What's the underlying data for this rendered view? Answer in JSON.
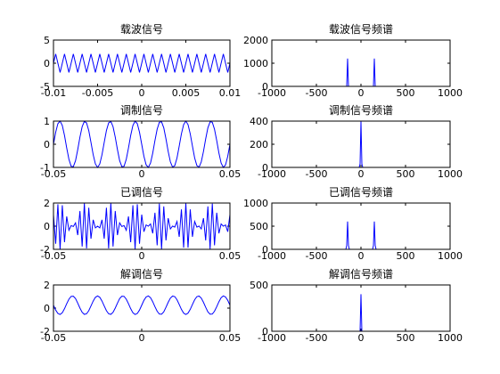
{
  "chart_data": [
    {
      "type": "line",
      "title": "载波信号",
      "color": "#0000ff",
      "x": [
        -0.01,
        -0.00975,
        -0.0095,
        -0.00925,
        -0.009,
        -0.00875,
        -0.0085,
        -0.00825,
        -0.008,
        -0.00775,
        -0.0075,
        -0.00725,
        -0.007,
        -0.00675,
        -0.0065,
        -0.00625,
        -0.006,
        -0.00575,
        -0.0055,
        -0.00525,
        -0.005,
        -0.00475,
        -0.0045,
        -0.00425,
        -0.004,
        -0.00375,
        -0.0035,
        -0.00325,
        -0.003,
        -0.00275,
        -0.0025,
        -0.00225,
        -0.002,
        -0.00175,
        -0.0015,
        -0.00125,
        -0.001,
        -0.00075,
        -0.0005,
        -0.00025,
        0,
        0.00025,
        0.0005,
        0.00075,
        0.001,
        0.00125,
        0.0015,
        0.00175,
        0.002,
        0.00225,
        0.0025,
        0.00275,
        0.003,
        0.00325,
        0.0035,
        0.00375,
        0.004,
        0.00425,
        0.0045,
        0.00475,
        0.005,
        0.00525,
        0.0055,
        0.00575,
        0.006,
        0.00625,
        0.0065,
        0.00675,
        0.007,
        0.00725,
        0.0075,
        0.00775,
        0.008,
        0.00825,
        0.0085,
        0.00875,
        0.009,
        0.00925,
        0.0095,
        0.00975,
        0.01
      ],
      "values": [
        0,
        2,
        0,
        -2,
        0,
        2,
        0,
        -2,
        0,
        2,
        0,
        -2,
        0,
        2,
        0,
        -2,
        0,
        2,
        0,
        -2,
        0,
        2,
        0,
        -2,
        0,
        2,
        0,
        -2,
        0,
        2,
        0,
        -2,
        0,
        2,
        0,
        -2,
        0,
        2,
        0,
        -2,
        0,
        2,
        0,
        -2,
        0,
        2,
        0,
        -2,
        0,
        2,
        0,
        -2,
        0,
        2,
        0,
        -2,
        0,
        2,
        0,
        -2,
        0,
        2,
        0,
        -2,
        0,
        2,
        0,
        -2,
        0,
        2,
        0,
        -2,
        0,
        2,
        0,
        -2,
        0,
        2,
        0,
        -2,
        0
      ],
      "xlim": [
        -0.01,
        0.01
      ],
      "xticks": [
        -0.01,
        -0.005,
        0,
        0.005,
        0.01
      ],
      "ylim": [
        -5,
        5
      ],
      "yticks": [
        -5,
        0,
        5
      ]
    },
    {
      "type": "line",
      "title": "载波信号频谱",
      "color": "#0000ff",
      "x": [
        -600,
        -160,
        -150,
        -140,
        140,
        150,
        160,
        600
      ],
      "values": [
        0,
        0,
        1200,
        0,
        0,
        1200,
        0,
        0
      ],
      "xlim": [
        -1000,
        1000
      ],
      "xticks": [
        -1000,
        -500,
        0,
        500,
        1000
      ],
      "ylim": [
        0,
        2000
      ],
      "yticks": [
        0,
        1000,
        2000
      ]
    },
    {
      "type": "line",
      "title": "调制信号",
      "color": "#0000ff",
      "x": [
        -0.05,
        -0.04875,
        -0.0475,
        -0.04625,
        -0.045,
        -0.04375,
        -0.0425,
        -0.04125,
        -0.04,
        -0.03875,
        -0.0375,
        -0.03625,
        -0.035,
        -0.03375,
        -0.0325,
        -0.03125,
        -0.03,
        -0.02875,
        -0.0275,
        -0.02625,
        -0.025,
        -0.02375,
        -0.0225,
        -0.02125,
        -0.02,
        -0.01875,
        -0.0175,
        -0.01625,
        -0.015,
        -0.01375,
        -0.0125,
        -0.01125,
        -0.01,
        -0.00875,
        -0.0075,
        -0.00625,
        -0.005,
        -0.00375,
        -0.0025,
        -0.00125,
        0,
        0.00125,
        0.0025,
        0.00375,
        0.005,
        0.00625,
        0.0075,
        0.00875,
        0.01,
        0.01125,
        0.0125,
        0.01375,
        0.015,
        0.01625,
        0.0175,
        0.01875,
        0.02,
        0.02125,
        0.0225,
        0.02375,
        0.025,
        0.02625,
        0.0275,
        0.02875,
        0.03,
        0.03125,
        0.0325,
        0.03375,
        0.035,
        0.03625,
        0.0375,
        0.03875,
        0.04,
        0.04125,
        0.0425,
        0.04375,
        0.045,
        0.04625,
        0.0475,
        0.04875,
        0.05
      ],
      "values": [
        0,
        0.52,
        0.89,
        1,
        0.81,
        0.38,
        -0.16,
        -0.65,
        -0.95,
        -0.97,
        -0.71,
        -0.23,
        0.31,
        0.76,
        0.99,
        0.92,
        0.59,
        0.08,
        -0.45,
        -0.85,
        -1,
        -0.85,
        -0.45,
        0.08,
        0.59,
        0.92,
        0.99,
        0.76,
        0.31,
        -0.23,
        -0.71,
        -0.97,
        -0.95,
        -0.65,
        -0.16,
        0.38,
        0.81,
        1,
        0.89,
        0.52,
        0,
        -0.52,
        -0.89,
        -1,
        -0.81,
        -0.38,
        0.16,
        0.65,
        0.95,
        0.97,
        0.71,
        0.23,
        -0.31,
        -0.76,
        -0.99,
        -0.92,
        -0.59,
        -0.08,
        0.45,
        0.85,
        1,
        0.85,
        0.45,
        -0.08,
        -0.59,
        -0.92,
        -0.99,
        -0.76,
        -0.31,
        0.23,
        0.71,
        0.97,
        0.95,
        0.65,
        0.16,
        -0.38,
        -0.81,
        -1,
        -0.89,
        -0.52,
        0
      ],
      "xlim": [
        -0.05,
        0.05
      ],
      "xticks": [
        -0.05,
        0,
        0.05
      ],
      "ylim": [
        -1,
        1
      ],
      "yticks": [
        -1,
        0,
        1
      ]
    },
    {
      "type": "line",
      "title": "调制信号频谱",
      "color": "#0000ff",
      "x": [
        -600,
        -20,
        -10,
        0,
        10,
        20,
        600
      ],
      "values": [
        0,
        0,
        30,
        400,
        30,
        0,
        0
      ],
      "xlim": [
        -1000,
        1000
      ],
      "xticks": [
        -1000,
        -500,
        0,
        500,
        1000
      ],
      "ylim": [
        0,
        400
      ],
      "yticks": [
        0,
        200,
        400
      ]
    },
    {
      "type": "line",
      "title": "已调信号",
      "color": "#0000ff",
      "x": [
        -0.05,
        -0.04875,
        -0.0475,
        -0.04625,
        -0.045,
        -0.04375,
        -0.0425,
        -0.04125,
        -0.04,
        -0.03875,
        -0.0375,
        -0.03625,
        -0.035,
        -0.03375,
        -0.0325,
        -0.03125,
        -0.03,
        -0.02875,
        -0.0275,
        -0.02625,
        -0.025,
        -0.02375,
        -0.0225,
        -0.02125,
        -0.02,
        -0.01875,
        -0.0175,
        -0.01625,
        -0.015,
        -0.01375,
        -0.0125,
        -0.01125,
        -0.01,
        -0.00875,
        -0.0075,
        -0.00625,
        -0.005,
        -0.00375,
        -0.0025,
        -0.00125,
        0,
        0.00125,
        0.0025,
        0.00375,
        0.005,
        0.00625,
        0.0075,
        0.00875,
        0.01,
        0.01125,
        0.0125,
        0.01375,
        0.015,
        0.01625,
        0.0175,
        0.01875,
        0.02,
        0.02125,
        0.0225,
        0.02375,
        0.025,
        0.02625,
        0.0275,
        0.02875,
        0.03,
        0.03125,
        0.0325,
        0.03375,
        0.035,
        0.03625,
        0.0375,
        0.03875,
        0.04,
        0.04125,
        0.0425,
        0.04375,
        0.045,
        0.04625,
        0.0475,
        0.04875,
        0.05
      ],
      "values": [
        1,
        -1.52,
        1.89,
        -2,
        1.81,
        -1.38,
        0.84,
        -0.35,
        0.05,
        -0.03,
        0.29,
        -0.77,
        1.31,
        -1.76,
        1.99,
        -1.92,
        1.59,
        -1.08,
        0.55,
        -0.15,
        0,
        -0.15,
        0.55,
        -1.08,
        1.59,
        -1.92,
        1.99,
        -1.76,
        1.31,
        -0.77,
        0.29,
        -0.03,
        0.05,
        -0.35,
        0.84,
        -1.38,
        1.81,
        -2,
        1.89,
        -1.52,
        1,
        -0.48,
        0.11,
        0,
        0.19,
        -0.62,
        1.16,
        -1.65,
        1.95,
        -1.97,
        1.71,
        -1.23,
        0.69,
        -0.24,
        0.01,
        -0.08,
        0.41,
        -0.92,
        1.45,
        -1.85,
        2,
        -1.85,
        1.45,
        -0.92,
        0.41,
        -0.08,
        0.01,
        -0.24,
        0.69,
        -1.23,
        1.71,
        -1.97,
        1.95,
        -1.65,
        1.16,
        -0.62,
        0.19,
        0,
        0.11,
        -0.48,
        1
      ],
      "xlim": [
        -0.05,
        0.05
      ],
      "xticks": [
        -0.05,
        0,
        0.05
      ],
      "ylim": [
        -2,
        2
      ],
      "yticks": [
        -2,
        0,
        2
      ]
    },
    {
      "type": "line",
      "title": "已调信号频谱",
      "color": "#0000ff",
      "x": [
        -600,
        -170,
        -160,
        -150,
        -140,
        -130,
        130,
        140,
        150,
        160,
        170,
        600
      ],
      "values": [
        0,
        0,
        80,
        600,
        80,
        0,
        0,
        80,
        600,
        80,
        0,
        0
      ],
      "xlim": [
        -1000,
        1000
      ],
      "xticks": [
        -1000,
        -500,
        0,
        500,
        1000
      ],
      "ylim": [
        0,
        1000
      ],
      "yticks": [
        0,
        500,
        1000
      ]
    },
    {
      "type": "line",
      "title": "解调信号",
      "color": "#0000ff",
      "x": [
        -0.05,
        -0.04875,
        -0.0475,
        -0.04625,
        -0.045,
        -0.04375,
        -0.0425,
        -0.04125,
        -0.04,
        -0.03875,
        -0.0375,
        -0.03625,
        -0.035,
        -0.03375,
        -0.0325,
        -0.03125,
        -0.03,
        -0.02875,
        -0.0275,
        -0.02625,
        -0.025,
        -0.02375,
        -0.0225,
        -0.02125,
        -0.02,
        -0.01875,
        -0.0175,
        -0.01625,
        -0.015,
        -0.01375,
        -0.0125,
        -0.01125,
        -0.01,
        -0.00875,
        -0.0075,
        -0.00625,
        -0.005,
        -0.00375,
        -0.0025,
        -0.00125,
        0,
        0.00125,
        0.0025,
        0.00375,
        0.005,
        0.00625,
        0.0075,
        0.00875,
        0.01,
        0.01125,
        0.0125,
        0.01375,
        0.015,
        0.01625,
        0.0175,
        0.01875,
        0.02,
        0.02125,
        0.0225,
        0.02375,
        0.025,
        0.02625,
        0.0275,
        0.02875,
        0.03,
        0.03125,
        0.0325,
        0.03375,
        0.035,
        0.03625,
        0.0375,
        0.03875,
        0.04,
        0.04125,
        0.0425,
        0.04375,
        0.045,
        0.04625,
        0.0475,
        0.04875,
        0.05
      ],
      "values": [
        0.25,
        -0.17,
        -0.46,
        -0.55,
        -0.4,
        -0.05,
        0.38,
        0.77,
        1.01,
        1.03,
        0.82,
        0.43,
        0,
        -0.36,
        -0.54,
        -0.49,
        -0.22,
        0.19,
        0.61,
        0.93,
        1.05,
        0.93,
        0.61,
        0.19,
        -0.22,
        -0.49,
        -0.54,
        -0.36,
        0,
        0.43,
        0.82,
        1.03,
        1.01,
        0.77,
        0.38,
        -0.05,
        -0.4,
        -0.55,
        -0.46,
        -0.17,
        0.25,
        0.67,
        0.96,
        1.05,
        0.9,
        0.55,
        0.12,
        -0.27,
        -0.51,
        -0.53,
        -0.32,
        0.07,
        0.5,
        0.86,
        1.04,
        0.99,
        0.72,
        0.31,
        -0.11,
        -0.43,
        -0.55,
        -0.43,
        -0.11,
        0.31,
        0.72,
        0.99,
        1.04,
        0.86,
        0.5,
        0.07,
        -0.32,
        -0.53,
        -0.51,
        -0.27,
        0.12,
        0.55,
        0.9,
        1.05,
        0.96,
        0.67,
        0.25
      ],
      "xlim": [
        -0.05,
        0.05
      ],
      "xticks": [
        -0.05,
        0,
        0.05
      ],
      "ylim": [
        -2,
        2
      ],
      "yticks": [
        -2,
        0,
        2
      ]
    },
    {
      "type": "line",
      "title": "解调信号频谱",
      "color": "#0000ff",
      "x": [
        -600,
        -10,
        0,
        10,
        600
      ],
      "values": [
        0,
        0,
        400,
        0,
        0
      ],
      "xlim": [
        -1000,
        1000
      ],
      "xticks": [
        -1000,
        -500,
        0,
        500,
        1000
      ],
      "ylim": [
        0,
        500
      ],
      "yticks": [
        0,
        500
      ]
    }
  ]
}
